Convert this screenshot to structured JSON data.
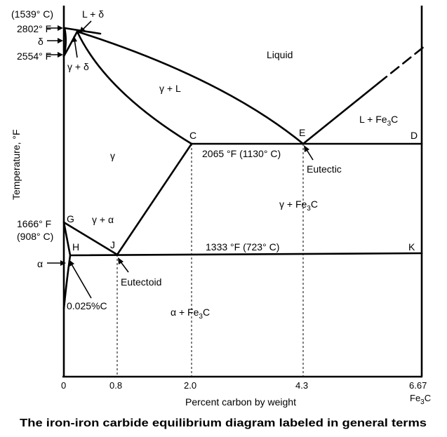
{
  "caption": "The iron-iron carbide equilibrium diagram labeled in general terms",
  "axes": {
    "xlabel": "Percent carbon by weight",
    "ylabel": "Temperature, °F",
    "x_ticks": [
      "0",
      "0.8",
      "2.0",
      "4.3",
      "6.67"
    ],
    "x_end_label": {
      "base": "Fe",
      "sub": "3",
      "tail": "C"
    }
  },
  "temperature_labels": {
    "t1539c": "(1539° C)",
    "t2802f": "2802° F",
    "delta": "δ",
    "t2554f": "2554° F",
    "t1666f": "1666° F",
    "t908c": "(908° C)",
    "alpha": "α"
  },
  "regions": {
    "liquid": "Liquid",
    "l_delta": "L + δ",
    "gamma_delta": "γ + δ",
    "gamma_l": "γ + L",
    "gamma": "γ",
    "gamma_alpha": "γ + α",
    "l_fe3c": {
      "base": "L + Fe",
      "sub": "3",
      "tail": "C"
    },
    "gamma_fe3c": {
      "base": "γ + Fe",
      "sub": "3",
      "tail": "C"
    },
    "alpha_fe3c": {
      "base": "α + Fe",
      "sub": "3",
      "tail": "C"
    }
  },
  "points": {
    "C": "C",
    "D": "D",
    "E": "E",
    "G": "G",
    "H": "H",
    "J": "J",
    "K": "K"
  },
  "annotations": {
    "eutectic_temp": "2065 °F (1130° C)",
    "eutectoid_temp": "1333 °F (723° C)",
    "eutectic": "Eutectic",
    "eutectoid": "Eutectoid",
    "solubility": "0.025%C"
  }
}
